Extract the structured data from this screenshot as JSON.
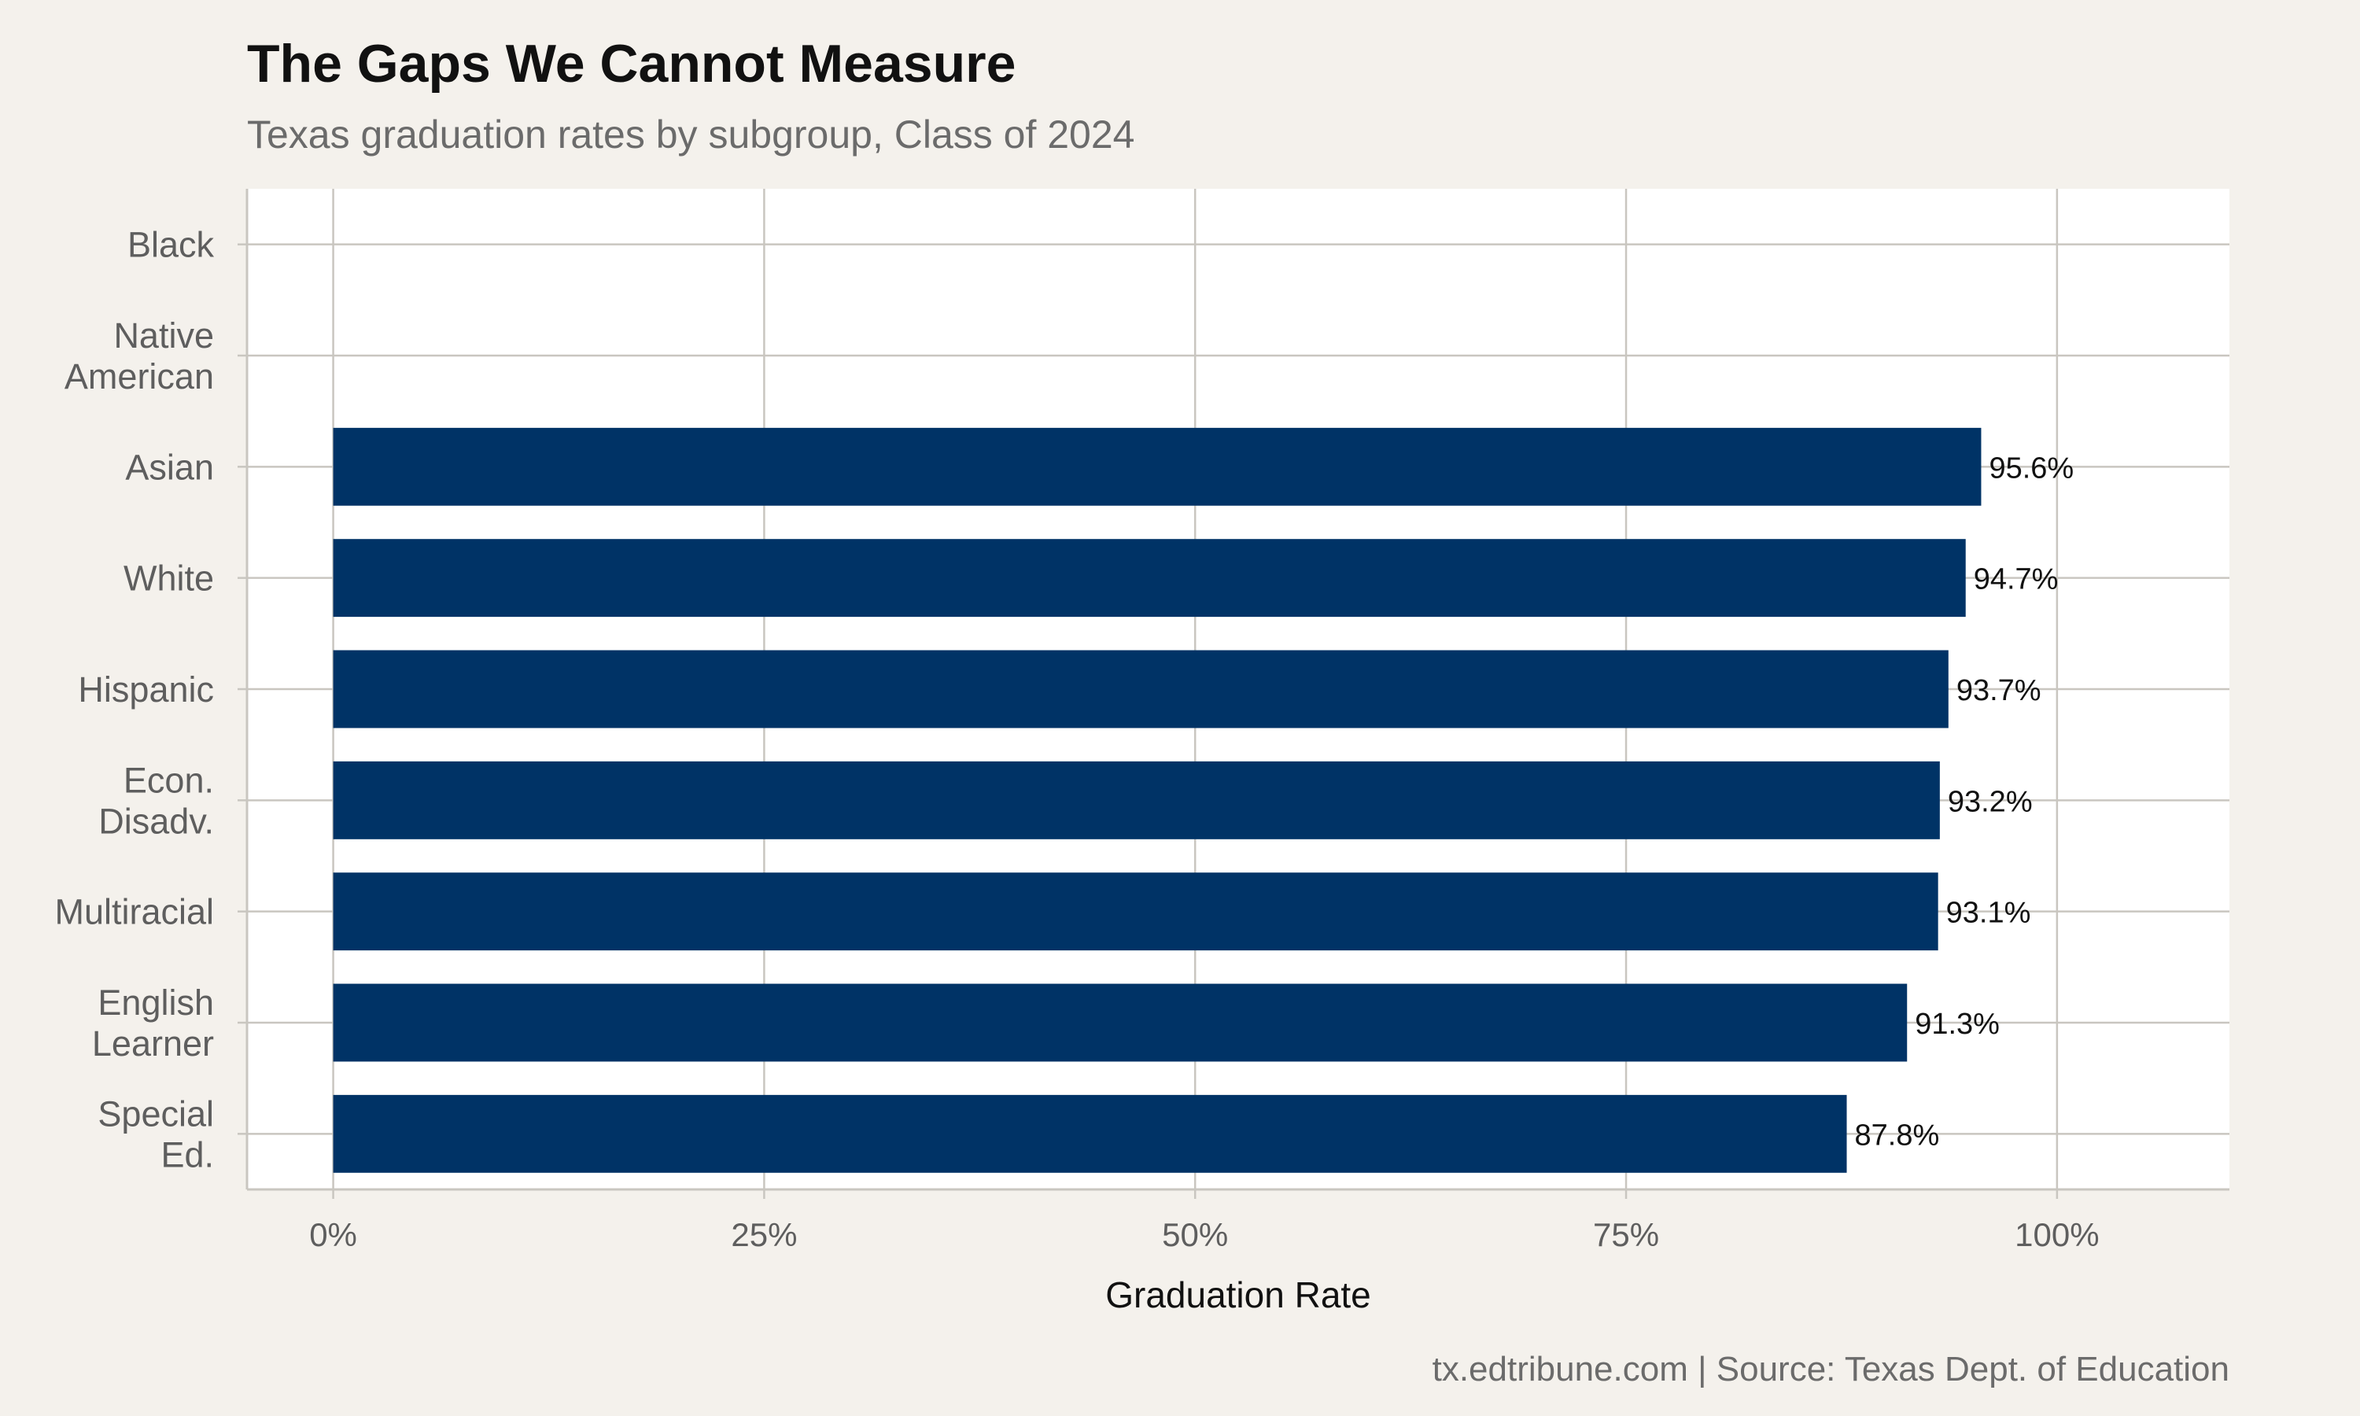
{
  "chart_data": {
    "type": "bar",
    "orientation": "horizontal",
    "title": "The Gaps We Cannot Measure",
    "subtitle": "Texas graduation rates by subgroup, Class of 2024",
    "xlabel": "Graduation Rate",
    "ylabel": "",
    "caption": "tx.edtribune.com | Source: Texas Dept. of Education",
    "xlim": [
      -5,
      110
    ],
    "x_ticks": [
      0,
      25,
      50,
      75,
      100
    ],
    "x_tick_labels": [
      "0%",
      "25%",
      "50%",
      "75%",
      "100%"
    ],
    "grid": true,
    "categories": [
      {
        "lines": [
          "Black"
        ],
        "value": null,
        "label": ""
      },
      {
        "lines": [
          "Native",
          "American"
        ],
        "value": null,
        "label": ""
      },
      {
        "lines": [
          "Asian"
        ],
        "value": 95.6,
        "label": "95.6%"
      },
      {
        "lines": [
          "White"
        ],
        "value": 94.7,
        "label": "94.7%"
      },
      {
        "lines": [
          "Hispanic"
        ],
        "value": 93.7,
        "label": "93.7%"
      },
      {
        "lines": [
          "Econ.",
          "Disadv."
        ],
        "value": 93.2,
        "label": "93.2%"
      },
      {
        "lines": [
          "Multiracial"
        ],
        "value": 93.1,
        "label": "93.1%"
      },
      {
        "lines": [
          "English",
          "Learner"
        ],
        "value": 91.3,
        "label": "91.3%"
      },
      {
        "lines": [
          "Special",
          "Ed."
        ],
        "value": 87.8,
        "label": "87.8%"
      }
    ],
    "colors": {
      "bar": "#003366",
      "panel": "#ffffff",
      "background": "#f4f1ec",
      "grid": "#c9c6c0"
    }
  }
}
